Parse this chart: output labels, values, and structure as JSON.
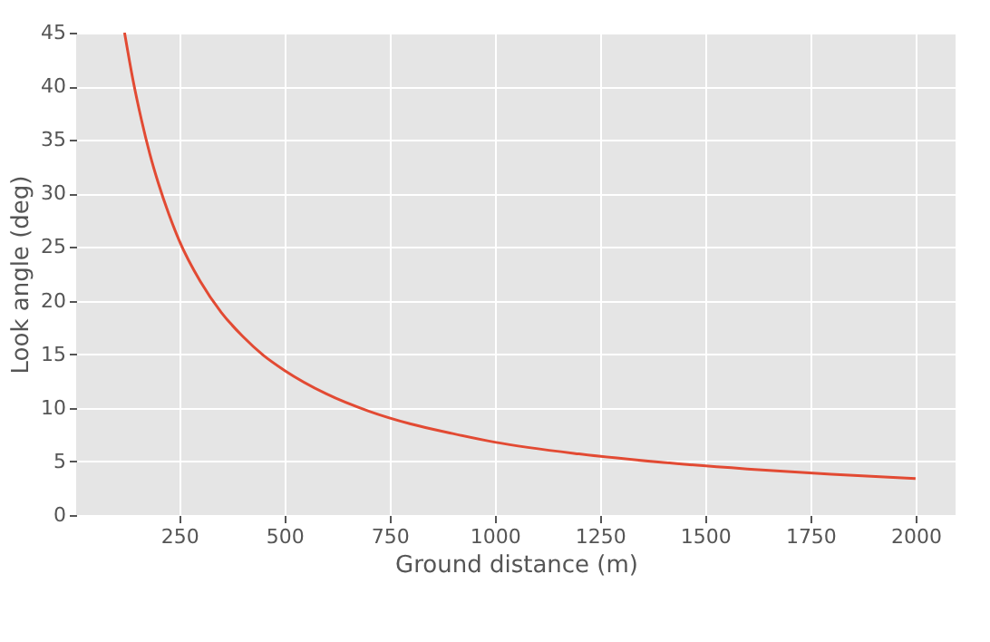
{
  "chart_data": {
    "type": "line",
    "xlabel": "Ground distance (m)",
    "ylabel": "Look angle (deg)",
    "x": [
      120,
      140,
      160,
      180,
      200,
      225,
      250,
      300,
      350,
      400,
      450,
      500,
      600,
      700,
      800,
      900,
      1000,
      1200,
      1400,
      1600,
      1800,
      2000
    ],
    "series": [
      {
        "color": "#e24a33",
        "values": [
          45,
          40.6,
          36.9,
          33.7,
          31.0,
          28.1,
          25.6,
          21.8,
          18.9,
          16.7,
          14.9,
          13.5,
          11.3,
          9.7,
          8.5,
          7.6,
          6.8,
          5.7,
          4.9,
          4.3,
          3.8,
          3.4
        ]
      }
    ],
    "xlim": [
      5,
      2095
    ],
    "ylim": [
      0,
      45
    ],
    "xticks": [
      250,
      500,
      750,
      1000,
      1250,
      1500,
      1750,
      2000
    ],
    "yticks": [
      0,
      5,
      10,
      15,
      20,
      25,
      30,
      35,
      40,
      45
    ],
    "grid": true,
    "marker": "none",
    "line_style": "solid"
  }
}
